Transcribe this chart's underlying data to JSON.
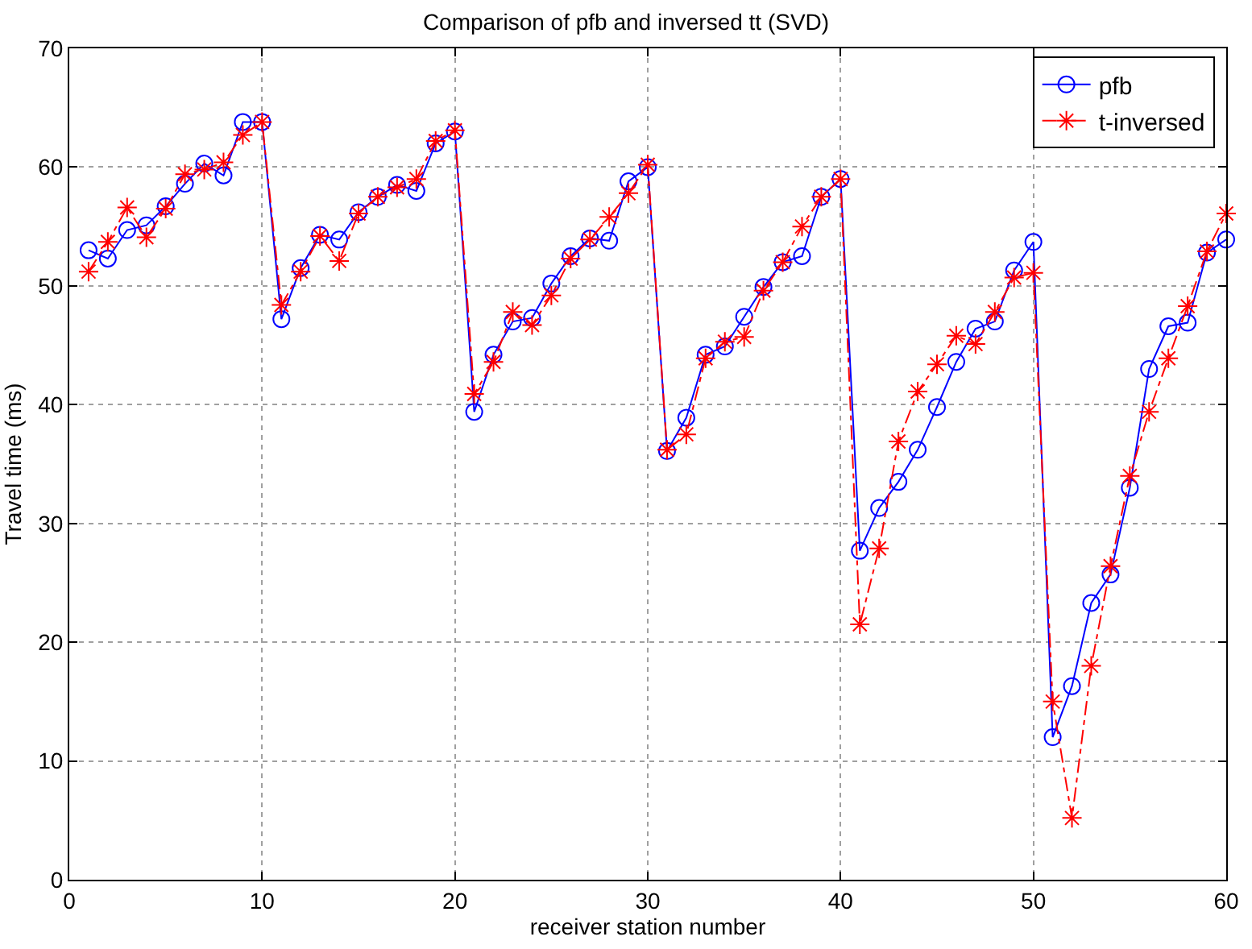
{
  "chart_data": {
    "type": "line",
    "title": "Comparison of pfb and inversed tt (SVD)",
    "xlabel": "receiver station number",
    "ylabel": "Travel time (ms)",
    "x": [
      1,
      2,
      3,
      4,
      5,
      6,
      7,
      8,
      9,
      10,
      11,
      12,
      13,
      14,
      15,
      16,
      17,
      18,
      19,
      20,
      21,
      22,
      23,
      24,
      25,
      26,
      27,
      28,
      29,
      30,
      31,
      32,
      33,
      34,
      35,
      36,
      37,
      38,
      39,
      40,
      41,
      42,
      43,
      44,
      45,
      46,
      47,
      48,
      49,
      50,
      51,
      52,
      53,
      54,
      55,
      56,
      57,
      58,
      59,
      60
    ],
    "series": [
      {
        "name": "pfb",
        "color": "#0000ff",
        "marker": "circle",
        "line_style": "solid",
        "values": [
          53.0,
          52.3,
          54.7,
          55.1,
          56.7,
          58.6,
          60.3,
          59.3,
          63.8,
          63.8,
          47.2,
          51.5,
          54.3,
          53.9,
          56.2,
          57.5,
          58.5,
          58.0,
          62.0,
          63.0,
          39.4,
          44.2,
          47.0,
          47.3,
          50.2,
          52.5,
          54.0,
          53.8,
          58.8,
          60.0,
          36.1,
          38.9,
          44.2,
          44.9,
          47.4,
          49.9,
          52.0,
          52.5,
          57.5,
          59.0,
          27.7,
          31.3,
          33.5,
          36.2,
          39.8,
          43.6,
          46.4,
          47.0,
          51.3,
          53.7,
          12.0,
          16.3,
          23.3,
          25.7,
          33.0,
          43.0,
          46.6,
          46.9,
          52.8,
          53.9
        ]
      },
      {
        "name": "t-inversed",
        "color": "#ff0000",
        "marker": "cross",
        "line_style": "dashed",
        "values": [
          51.2,
          53.7,
          56.6,
          54.1,
          56.5,
          59.4,
          59.8,
          60.4,
          62.7,
          63.8,
          48.4,
          51.2,
          54.2,
          52.1,
          56.1,
          57.5,
          58.3,
          59.0,
          62.2,
          63.1,
          40.9,
          43.6,
          47.8,
          46.7,
          49.2,
          52.3,
          53.9,
          55.8,
          57.8,
          60.2,
          36.2,
          37.5,
          43.9,
          45.3,
          45.7,
          49.6,
          52.0,
          55.0,
          57.5,
          59.0,
          21.5,
          27.9,
          36.9,
          41.1,
          43.4,
          45.8,
          45.1,
          47.8,
          50.7,
          51.1,
          15.0,
          5.2,
          18.0,
          26.4,
          34.0,
          39.4,
          43.9,
          48.3,
          52.9,
          56.1
        ]
      }
    ],
    "xlim": [
      0,
      60
    ],
    "xticks": [
      0,
      10,
      20,
      30,
      40,
      50,
      60
    ],
    "ylim": [
      0,
      70
    ],
    "yticks": [
      0,
      10,
      20,
      30,
      40,
      50,
      60,
      70
    ],
    "grid": true,
    "legend": "top right"
  }
}
